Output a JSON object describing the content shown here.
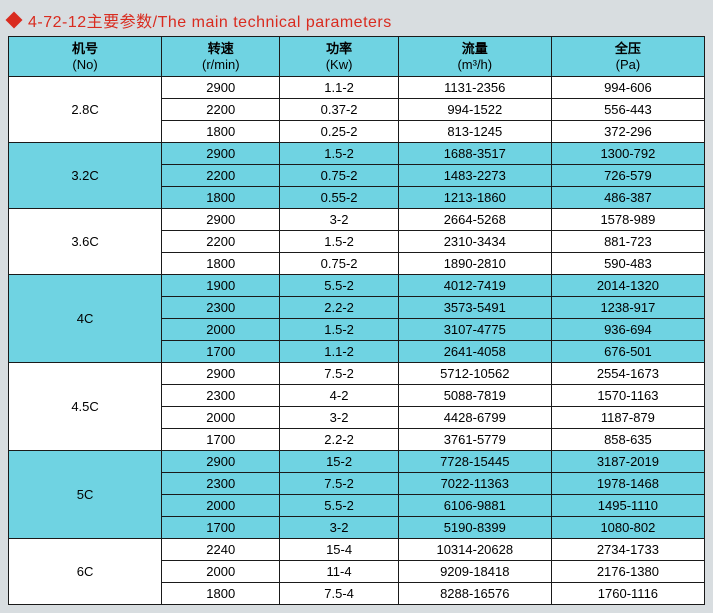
{
  "title": "4-72-12主要参数/The main technical parameters",
  "columns": [
    {
      "zh": "机号",
      "en": "(No)"
    },
    {
      "zh": "转速",
      "en": "(r/min)"
    },
    {
      "zh": "功率",
      "en": "(Kw)"
    },
    {
      "zh": "流量",
      "en": "(m³/h)"
    },
    {
      "zh": "全压",
      "en": "(Pa)"
    }
  ],
  "groups": [
    {
      "model": "2.8C",
      "shade": "odd",
      "rows": [
        {
          "speed": "2900",
          "power": "1.1-2",
          "flow": "1131-2356",
          "pressure": "994-606"
        },
        {
          "speed": "2200",
          "power": "0.37-2",
          "flow": "994-1522",
          "pressure": "556-443"
        },
        {
          "speed": "1800",
          "power": "0.25-2",
          "flow": "813-1245",
          "pressure": "372-296"
        }
      ]
    },
    {
      "model": "3.2C",
      "shade": "even",
      "rows": [
        {
          "speed": "2900",
          "power": "1.5-2",
          "flow": "1688-3517",
          "pressure": "1300-792"
        },
        {
          "speed": "2200",
          "power": "0.75-2",
          "flow": "1483-2273",
          "pressure": "726-579"
        },
        {
          "speed": "1800",
          "power": "0.55-2",
          "flow": "1213-1860",
          "pressure": "486-387"
        }
      ]
    },
    {
      "model": "3.6C",
      "shade": "odd",
      "rows": [
        {
          "speed": "2900",
          "power": "3-2",
          "flow": "2664-5268",
          "pressure": "1578-989"
        },
        {
          "speed": "2200",
          "power": "1.5-2",
          "flow": "2310-3434",
          "pressure": "881-723"
        },
        {
          "speed": "1800",
          "power": "0.75-2",
          "flow": "1890-2810",
          "pressure": "590-483"
        }
      ]
    },
    {
      "model": "4C",
      "shade": "even",
      "rows": [
        {
          "speed": "1900",
          "power": "5.5-2",
          "flow": "4012-7419",
          "pressure": "2014-1320"
        },
        {
          "speed": "2300",
          "power": "2.2-2",
          "flow": "3573-5491",
          "pressure": "1238-917"
        },
        {
          "speed": "2000",
          "power": "1.5-2",
          "flow": "3107-4775",
          "pressure": "936-694"
        },
        {
          "speed": "1700",
          "power": "1.1-2",
          "flow": "2641-4058",
          "pressure": "676-501"
        }
      ]
    },
    {
      "model": "4.5C",
      "shade": "odd",
      "rows": [
        {
          "speed": "2900",
          "power": "7.5-2",
          "flow": "5712-10562",
          "pressure": "2554-1673"
        },
        {
          "speed": "2300",
          "power": "4-2",
          "flow": "5088-7819",
          "pressure": "1570-1163"
        },
        {
          "speed": "2000",
          "power": "3-2",
          "flow": "4428-6799",
          "pressure": "1187-879"
        },
        {
          "speed": "1700",
          "power": "2.2-2",
          "flow": "3761-5779",
          "pressure": "858-635"
        }
      ]
    },
    {
      "model": "5C",
      "shade": "even",
      "rows": [
        {
          "speed": "2900",
          "power": "15-2",
          "flow": "7728-15445",
          "pressure": "3187-2019"
        },
        {
          "speed": "2300",
          "power": "7.5-2",
          "flow": "7022-11363",
          "pressure": "1978-1468"
        },
        {
          "speed": "2000",
          "power": "5.5-2",
          "flow": "6106-9881",
          "pressure": "1495-1110"
        },
        {
          "speed": "1700",
          "power": "3-2",
          "flow": "5190-8399",
          "pressure": "1080-802"
        }
      ]
    },
    {
      "model": "6C",
      "shade": "odd",
      "rows": [
        {
          "speed": "2240",
          "power": "15-4",
          "flow": "10314-20628",
          "pressure": "2734-1733"
        },
        {
          "speed": "2000",
          "power": "11-4",
          "flow": "9209-18418",
          "pressure": "2176-1380"
        },
        {
          "speed": "1800",
          "power": "7.5-4",
          "flow": "8288-16576",
          "pressure": "1760-1116"
        }
      ]
    }
  ]
}
